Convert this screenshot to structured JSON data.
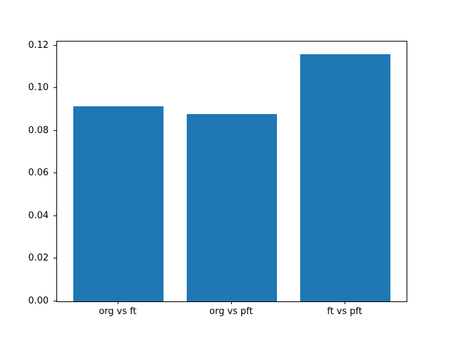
{
  "chart_data": {
    "type": "bar",
    "title": "",
    "xlabel": "",
    "ylabel": "",
    "categories": [
      "org vs ft",
      "org vs pft",
      "ft vs pft"
    ],
    "values": [
      0.0915,
      0.0878,
      0.1161
    ],
    "ylim": [
      0,
      0.1219
    ],
    "yticks": [
      0.0,
      0.02,
      0.04,
      0.06,
      0.08,
      0.1,
      0.12
    ],
    "ytick_labels": [
      "0.00",
      "0.02",
      "0.04",
      "0.06",
      "0.08",
      "0.10",
      "0.12"
    ],
    "bar_color": "#1f77b4",
    "bar_width_fraction": 0.8,
    "grid": false,
    "legend": null,
    "background": "#ffffff"
  }
}
